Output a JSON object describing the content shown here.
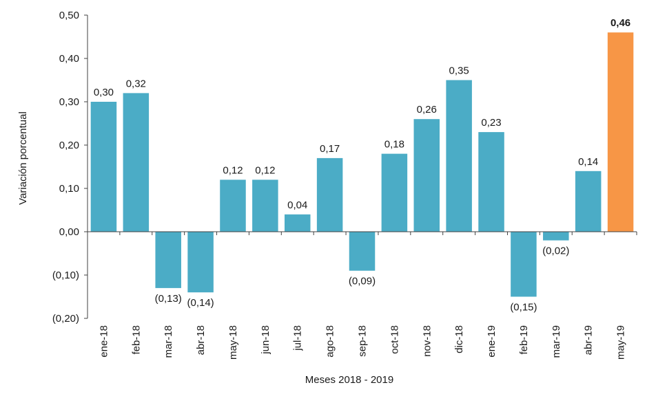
{
  "chart_data": {
    "type": "bar",
    "xlabel": "Meses 2018 - 2019",
    "ylabel": "Variación porcentual",
    "ylim": [
      -0.2,
      0.5
    ],
    "yticks": [
      0.5,
      0.4,
      0.3,
      0.2,
      0.1,
      0.0,
      -0.1,
      -0.2
    ],
    "ytick_labels": [
      "0,50",
      "0,40",
      "0,30",
      "0,20",
      "0,10",
      "0,00",
      "(0,10)",
      "(0,20)"
    ],
    "categories": [
      "ene-18",
      "feb-18",
      "mar-18",
      "abr-18",
      "may-18",
      "jun-18",
      "jul-18",
      "ago-18",
      "sep-18",
      "oct-18",
      "nov-18",
      "dic-18",
      "ene-19",
      "feb-19",
      "mar-19",
      "abr-19",
      "may-19"
    ],
    "values": [
      0.3,
      0.32,
      -0.13,
      -0.14,
      0.12,
      0.12,
      0.04,
      0.17,
      -0.09,
      0.18,
      0.26,
      0.35,
      0.23,
      -0.15,
      -0.02,
      0.14,
      0.46
    ],
    "value_labels": [
      "0,30",
      "0,32",
      "(0,13)",
      "(0,14)",
      "0,12",
      "0,12",
      "0,04",
      "0,17",
      "(0,09)",
      "0,18",
      "0,26",
      "0,35",
      "0,23",
      "(0,15)",
      "(0,02)",
      "0,14",
      "0,46"
    ],
    "highlight_index": 16,
    "grid": false,
    "legend": "none",
    "colors": {
      "bar": "#4bacc6",
      "highlight": "#f79646",
      "axis": "#404040"
    }
  }
}
